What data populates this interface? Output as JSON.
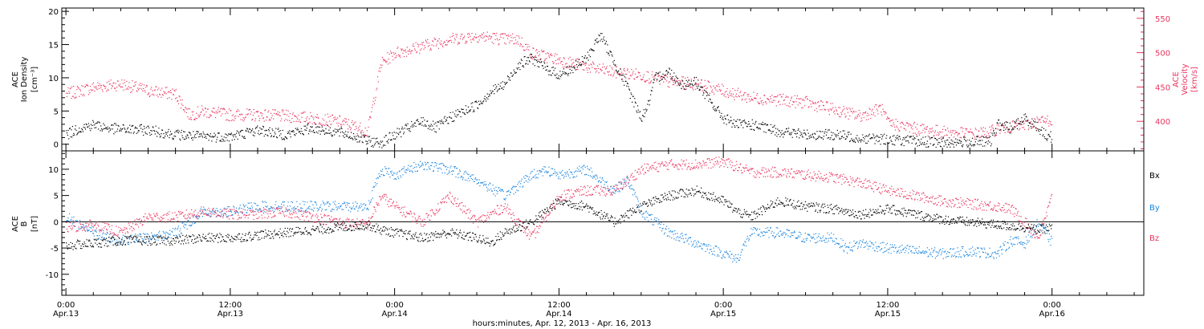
{
  "figure": {
    "xlabel": "hours:minutes, Apr. 12, 2013 - Apr. 16, 2013",
    "x_ticks": [
      {
        "time": "0:00",
        "date": "Apr.13",
        "hour": 0
      },
      {
        "time": "12:00",
        "date": "Apr.13",
        "hour": 12
      },
      {
        "time": "0:00",
        "date": "Apr.14",
        "hour": 24
      },
      {
        "time": "12:00",
        "date": "Apr.14",
        "hour": 36
      },
      {
        "time": "0:00",
        "date": "Apr.15",
        "hour": 48
      },
      {
        "time": "12:00",
        "date": "Apr.15",
        "hour": 60
      },
      {
        "time": "0:00",
        "date": "Apr.16",
        "hour": 72
      }
    ]
  },
  "colors": {
    "density": "#000000",
    "velocity": "#e8365f",
    "bx": "#000000",
    "by": "#1a85e0",
    "bz": "#e8365f"
  },
  "chart_data": [
    {
      "type": "scatter",
      "panel": "solar-wind",
      "xlim_hours": [
        -0.3,
        78.7
      ],
      "ylabel_left": [
        "ACE",
        "Ion Density",
        "[cm⁻³]"
      ],
      "ylabel_right": [
        "ACE",
        "Velocity",
        "[km/s]"
      ],
      "ylim_left": [
        -1,
        20.5
      ],
      "ylim_right": [
        357,
        565
      ],
      "yticks_left": [
        0,
        5,
        10,
        15,
        20
      ],
      "yticks_right": [
        400,
        450,
        500,
        550
      ],
      "series": [
        {
          "axis": "left",
          "x": [
            0,
            1,
            2,
            3,
            4,
            6,
            8,
            10,
            12,
            14,
            16,
            18,
            20,
            21.5,
            22,
            23,
            24,
            25,
            26,
            27,
            28,
            29,
            30,
            31,
            32,
            33,
            34,
            35,
            36,
            37,
            38,
            39,
            40,
            41,
            42,
            42.5,
            43,
            44,
            45,
            46,
            47,
            48,
            49,
            50,
            52,
            54,
            56,
            58,
            60,
            62,
            64,
            66,
            67.5,
            68,
            69,
            70,
            71,
            71.5,
            72
          ],
          "y": [
            1.5,
            2.5,
            3,
            2.5,
            2.3,
            2.2,
            1.5,
            1.2,
            1.2,
            2.2,
            1.5,
            2.5,
            1.8,
            1,
            0.5,
            0.3,
            1.5,
            2.5,
            3.5,
            2.5,
            4,
            5,
            6,
            8,
            9,
            12,
            13,
            11.5,
            10.5,
            11.5,
            13,
            16.5,
            12.5,
            8.5,
            4,
            6,
            10,
            11,
            9,
            9.5,
            6.5,
            4,
            3,
            3,
            2,
            1.5,
            1.5,
            1,
            0.8,
            0.5,
            0.3,
            0.4,
            0.5,
            3,
            2.5,
            4,
            2.5,
            1.5,
            1
          ]
        },
        {
          "axis": "right",
          "x": [
            0,
            1,
            2,
            4,
            6,
            8,
            9,
            10,
            12,
            14,
            16,
            18,
            20,
            21.5,
            22,
            23,
            24,
            26,
            28,
            30,
            32,
            33,
            34,
            35,
            36,
            38,
            40,
            42,
            44,
            46,
            48,
            50,
            52,
            54,
            56,
            58,
            59.5,
            60,
            62,
            64,
            66,
            67.5,
            68,
            70,
            71,
            72
          ],
          "y": [
            440,
            445,
            450,
            455,
            445,
            440,
            410,
            415,
            410,
            410,
            408,
            405,
            400,
            390,
            385,
            485,
            500,
            510,
            520,
            525,
            520,
            520,
            500,
            495,
            490,
            480,
            472,
            468,
            458,
            455,
            445,
            435,
            432,
            428,
            418,
            408,
            420,
            398,
            390,
            385,
            382,
            385,
            390,
            395,
            400,
            403
          ]
        }
      ]
    },
    {
      "type": "scatter",
      "panel": "magnetic-field",
      "xlim_hours": [
        -0.3,
        78.7
      ],
      "ylabel_left": [
        "ACE",
        "B",
        "[nT]"
      ],
      "ylim": [
        -14,
        13.5
      ],
      "yticks": [
        -10,
        -5,
        0,
        5,
        10
      ],
      "zero_line": 0,
      "legend_placement": "right",
      "series": [
        {
          "name": "Bx",
          "x": [
            0,
            2,
            4,
            6,
            8,
            10,
            12,
            14,
            16,
            18,
            20,
            22,
            23,
            24,
            26,
            28,
            30,
            31,
            32,
            34,
            36,
            38,
            40,
            42,
            44,
            46,
            48,
            49,
            50,
            52,
            54,
            56,
            58,
            60,
            62,
            64,
            66,
            68,
            70,
            71,
            72
          ],
          "y": [
            -4.5,
            -4,
            -3.5,
            -3.5,
            -3.5,
            -3,
            -3,
            -2.5,
            -2,
            -1.5,
            -1,
            -0.5,
            -1.5,
            -2,
            -3,
            -2,
            -3,
            -4,
            -2,
            0,
            4,
            3,
            0,
            3,
            5,
            6,
            4,
            2,
            1,
            4,
            3,
            2.5,
            1.5,
            2.5,
            1.5,
            0.5,
            0,
            -0.5,
            -1,
            -1.5,
            -1
          ]
        },
        {
          "name": "By",
          "x": [
            0,
            2,
            4,
            6,
            8,
            10,
            12,
            14,
            16,
            18,
            20,
            22,
            23,
            24,
            26,
            28,
            30,
            32,
            34,
            35,
            36,
            38,
            40,
            41,
            42,
            44,
            46,
            48,
            49,
            50,
            52,
            54,
            56,
            57,
            58,
            60,
            62,
            64,
            66,
            68,
            69,
            70,
            71,
            72
          ],
          "y": [
            1,
            -2,
            -3.5,
            -3,
            -2,
            2,
            2,
            3,
            3,
            3,
            3,
            3,
            10,
            9,
            11,
            10,
            8,
            5,
            9,
            10,
            9,
            10,
            6,
            8,
            2,
            -2,
            -4,
            -6,
            -7,
            -2,
            -2,
            -3,
            -3,
            -5,
            -4,
            -5,
            -5.5,
            -6,
            -5.5,
            -6,
            -3.5,
            -4,
            0,
            -4
          ]
        },
        {
          "name": "Bz",
          "x": [
            0,
            2,
            4,
            6,
            8,
            10,
            12,
            14,
            16,
            18,
            20,
            22,
            23,
            24,
            26,
            28,
            30,
            32,
            34,
            36,
            38,
            40,
            42,
            44,
            46,
            48,
            49,
            50,
            52,
            54,
            56,
            57,
            58,
            60,
            62,
            64,
            66,
            68,
            69,
            70,
            71,
            72
          ],
          "y": [
            -1,
            -0.5,
            -2,
            1,
            1,
            2,
            1.5,
            1.5,
            2,
            1,
            0,
            -0.5,
            5,
            3,
            0,
            5,
            0,
            3,
            -3,
            5,
            6,
            6,
            10,
            11,
            11,
            11.5,
            10.5,
            9.5,
            9.5,
            9,
            8.5,
            8,
            7.5,
            6,
            5,
            4,
            3.5,
            3,
            2.5,
            0,
            -3,
            5
          ]
        }
      ]
    }
  ]
}
